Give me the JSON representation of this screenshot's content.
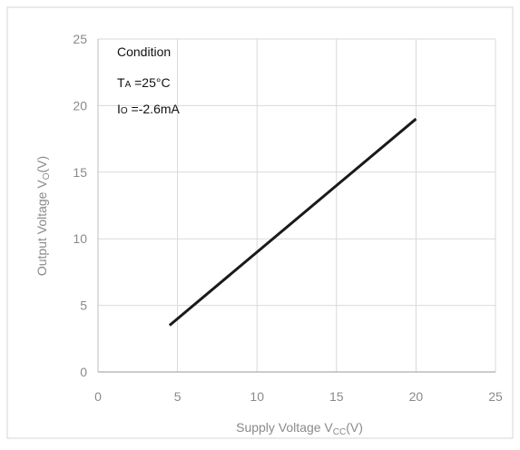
{
  "chart_data": {
    "type": "line",
    "xlabel": "Supply Voltage V",
    "xlabel_subscript": "CC",
    "xlabel_unit": "(V)",
    "ylabel": "Output Voltage V",
    "ylabel_subscript": "O",
    "ylabel_unit": "(V)",
    "xlim": [
      0,
      25
    ],
    "ylim": [
      0,
      25
    ],
    "xticks": [
      0,
      5,
      10,
      15,
      20,
      25
    ],
    "yticks": [
      0,
      5,
      10,
      15,
      20,
      25
    ],
    "grid": true,
    "series": [
      {
        "x": [
          4.5,
          20
        ],
        "y": [
          3.5,
          19
        ],
        "color": "#1a1a1a"
      }
    ],
    "annotation": {
      "heading": "Condition",
      "line1_symbol": "T",
      "line1_subscript": "A",
      "line1_value": " =25°C",
      "line2_symbol": "I",
      "line2_subscript": "O",
      "line2_value": " =-2.6mA"
    }
  }
}
